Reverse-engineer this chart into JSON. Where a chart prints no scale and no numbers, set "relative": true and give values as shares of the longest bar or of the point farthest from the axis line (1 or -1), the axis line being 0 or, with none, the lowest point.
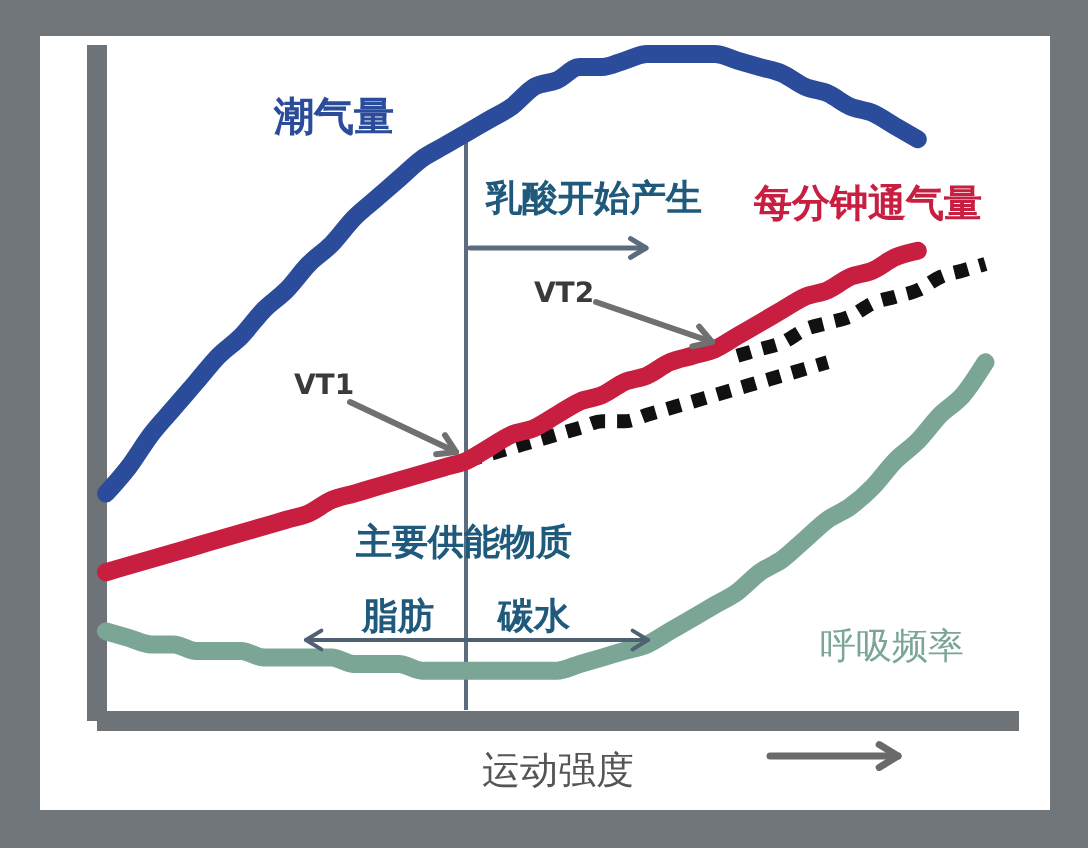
{
  "chart_data": {
    "type": "line",
    "relative": true,
    "xlabel": "运动强度",
    "categories": [
      null,
      null,
      null,
      null,
      null,
      null,
      null,
      null,
      null,
      null,
      null,
      null,
      null,
      null,
      null,
      null,
      null,
      null,
      null,
      null,
      null,
      null,
      null,
      null,
      null,
      null,
      null,
      null,
      null,
      null,
      null,
      null,
      null,
      null,
      null,
      null,
      null,
      null,
      null,
      null,
      null
    ],
    "series": [
      {
        "name": "潮气量",
        "color": "#2b4c9b",
        "values": [
          0.33,
          0.37,
          0.42,
          0.46,
          0.5,
          0.54,
          0.57,
          0.61,
          0.64,
          0.68,
          0.71,
          0.75,
          0.78,
          0.81,
          0.84,
          0.86,
          0.88,
          0.9,
          0.92,
          0.95,
          0.96,
          0.98,
          0.98,
          0.99,
          1,
          1,
          1,
          1,
          0.99,
          0.98,
          0.97,
          0.95,
          0.94,
          0.92,
          0.91,
          0.89,
          0.87,
          null,
          null,
          null,
          null
        ]
      },
      {
        "color": "#111111",
        "line_style": "dotted",
        "values": [
          null,
          null,
          null,
          null,
          null,
          null,
          null,
          null,
          null,
          null,
          null,
          null,
          null,
          null,
          null,
          null,
          0.38,
          0.39,
          0.4,
          0.41,
          0.42,
          0.43,
          0.44,
          0.44,
          0.45,
          0.46,
          0.47,
          0.48,
          0.49,
          0.5,
          0.51,
          0.52,
          0.53,
          null,
          null,
          null,
          null,
          null,
          null,
          null,
          null
        ]
      },
      {
        "color": "#111111",
        "line_style": "dotted",
        "values": [
          null,
          null,
          null,
          null,
          null,
          null,
          null,
          null,
          null,
          null,
          null,
          null,
          null,
          null,
          null,
          null,
          null,
          null,
          null,
          null,
          null,
          null,
          null,
          null,
          null,
          null,
          null,
          null,
          0.54,
          0.55,
          0.56,
          0.58,
          0.59,
          0.6,
          0.62,
          0.63,
          0.64,
          0.66,
          0.67,
          0.68,
          null
        ]
      },
      {
        "name": "每分钟通气量",
        "color": "#c81e40",
        "values": [
          0.21,
          0.22,
          0.23,
          0.24,
          0.25,
          0.26,
          0.27,
          0.28,
          0.29,
          0.3,
          0.32,
          0.33,
          0.34,
          0.35,
          0.36,
          0.37,
          0.38,
          0.4,
          0.42,
          0.43,
          0.45,
          0.47,
          0.48,
          0.5,
          0.51,
          0.53,
          0.54,
          0.55,
          0.57,
          0.59,
          0.61,
          0.63,
          0.64,
          0.66,
          0.67,
          0.69,
          0.7,
          null,
          null,
          null,
          null
        ]
      },
      {
        "name": "呼吸频率",
        "color": "#7ba696",
        "values": [
          0.12,
          0.11,
          0.1,
          0.1,
          0.09,
          0.09,
          0.09,
          0.08,
          0.08,
          0.08,
          0.08,
          0.07,
          0.07,
          0.07,
          0.06,
          0.06,
          0.06,
          0.06,
          0.06,
          0.06,
          0.06,
          0.07,
          0.08,
          0.09,
          0.1,
          0.12,
          0.14,
          0.16,
          0.18,
          0.21,
          0.23,
          0.26,
          0.29,
          0.31,
          0.34,
          0.38,
          0.41,
          0.45,
          0.48,
          0.53,
          null
        ]
      }
    ],
    "annotations": [
      "乳酸开始产生",
      "VT1",
      "VT2",
      "主要供能物质",
      "脂肪",
      "碳水"
    ]
  }
}
